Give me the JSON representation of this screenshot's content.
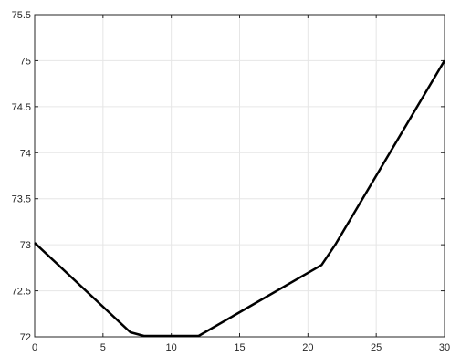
{
  "chart_data": {
    "type": "line",
    "title": "",
    "xlabel": "",
    "ylabel": "",
    "xlim": [
      0,
      30
    ],
    "ylim": [
      72,
      75.5
    ],
    "grid": true,
    "xticks": [
      0,
      5,
      10,
      15,
      20,
      25,
      30
    ],
    "yticks": [
      72,
      72.5,
      73,
      73.5,
      74,
      74.5,
      75,
      75.5
    ],
    "xtick_labels": [
      "0",
      "5",
      "10",
      "15",
      "20",
      "25",
      "30"
    ],
    "ytick_labels": [
      "72",
      "72.5",
      "73",
      "73.5",
      "74",
      "74.5",
      "75",
      "75.5"
    ],
    "series": [
      {
        "color": "#000000",
        "x": [
          0,
          7,
          8,
          9,
          10,
          11,
          12,
          21,
          22,
          30
        ],
        "y": [
          73.02,
          72.05,
          72.01,
          72.01,
          72.01,
          72.01,
          72.01,
          72.78,
          73.0,
          75.0
        ]
      }
    ]
  }
}
